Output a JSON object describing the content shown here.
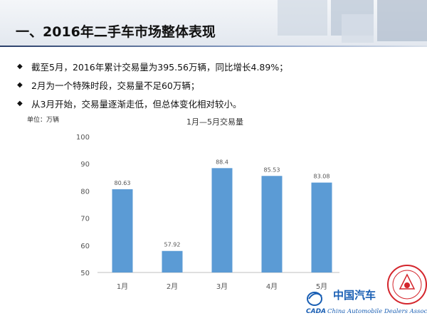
{
  "slide": {
    "title": "一、2016年二手车市场整体表现",
    "bullets": [
      {
        "icon": "diamond-bullet-icon",
        "text": "截至5月，2016年累计交易量为395.56万辆，同比增长4.89%；"
      },
      {
        "icon": "diamond-bullet-icon",
        "text": "2月为一个特殊时段，交易量不足60万辆；"
      },
      {
        "icon": "diamond-bullet-icon",
        "text": "从3月开始，交易量逐渐走低，但总体变化相对较小。"
      }
    ]
  },
  "chart_data": {
    "type": "bar",
    "title": "1月—5月交易量",
    "unit_label": "单位：万辆",
    "categories": [
      "1月",
      "2月",
      "3月",
      "4月",
      "5月"
    ],
    "values": [
      80.63,
      57.92,
      88.4,
      85.53,
      83.08
    ],
    "value_labels": [
      "80.63",
      "57.92",
      "88.4",
      "85.53",
      "83.08"
    ],
    "ylim": [
      50,
      100
    ],
    "yticks": [
      "50",
      "60",
      "70",
      "80",
      "90",
      "100"
    ],
    "bar_color": "#5b9bd5",
    "grid": false,
    "legend": "none"
  },
  "logo": {
    "brand_cn": "中国汽车",
    "brand_abbr": "CADA",
    "brand_en": "China Automobile Dealers Association",
    "brand_color": "#1a5fb4",
    "seal_color": "#d4252c"
  }
}
